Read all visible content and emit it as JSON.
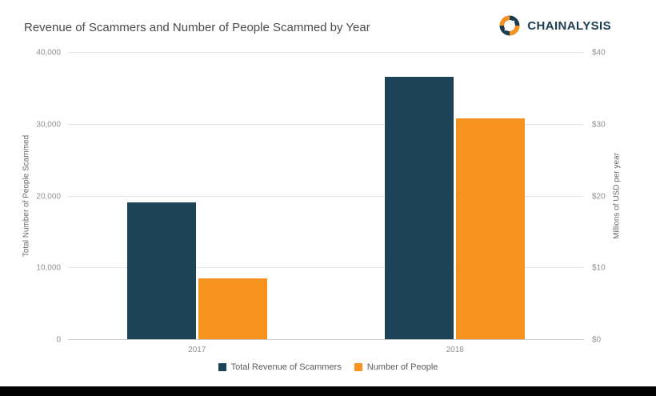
{
  "header": {
    "title": "Revenue of Scammers and Number of People Scammed by Year",
    "brand": "CHAINALYSIS"
  },
  "colors": {
    "revenue_bar": "#1d4456",
    "people_bar": "#f6921e",
    "brand_text": "#1c3c50",
    "footer": "#000000",
    "gridline": "#e7e7e7"
  },
  "chart_data": {
    "type": "bar",
    "title": "Revenue of Scammers and Number of People Scammed by Year",
    "categories": [
      "2017",
      "2018"
    ],
    "series": [
      {
        "name": "Total Revenue of Scammers",
        "axis": "right",
        "values": [
          19,
          36.6
        ],
        "color": "#1d4456"
      },
      {
        "name": "Number of People",
        "axis": "left",
        "values": [
          8500,
          30800
        ],
        "color": "#f6921e"
      }
    ],
    "left_axis": {
      "label": "Total Number of People Scammed",
      "ticks": [
        "0",
        "10,000",
        "20,000",
        "30,000",
        "40,000"
      ],
      "min": 0,
      "max": 40000
    },
    "right_axis": {
      "label": "Millions of USD per year",
      "ticks": [
        "$0",
        "$10",
        "$20",
        "$30",
        "$40"
      ],
      "min": 0,
      "max": 40
    },
    "grid": true,
    "legend_position": "bottom"
  }
}
